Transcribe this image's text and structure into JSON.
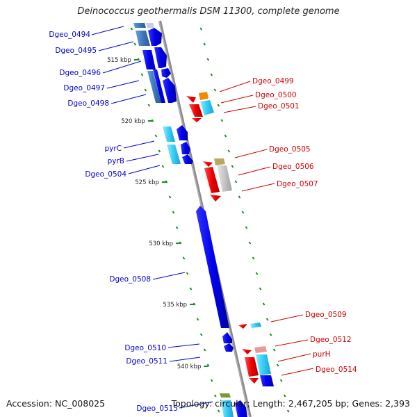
{
  "title": "Deinococcus geothermalis DSM 11300, complete genome",
  "accession": "Accession: NC_008025",
  "summary": "Topology: circular; Length: 2,467,205 bp; Genes: 2,393",
  "colors": {
    "backbone": "#8a8a8a",
    "tick": "#1a8a1a",
    "forward_label": "#0000cc",
    "reverse_label": "#cc0000"
  },
  "scale_labels": [
    "515 kbp",
    "520 kbp",
    "525 kbp",
    "530 kbp",
    "535 kbp",
    "540 kbp"
  ],
  "forward_labels": [
    "Dgeo_0494",
    "Dgeo_0495",
    "Dgeo_0496",
    "Dgeo_0497",
    "Dgeo_0498",
    "pyrC",
    "pyrB",
    "Dgeo_0504",
    "Dgeo_0508",
    "Dgeo_0510",
    "Dgeo_0511",
    "Dgeo_0515"
  ],
  "reverse_labels": [
    "Dgeo_0499",
    "Dgeo_0500",
    "Dgeo_0501",
    "Dgeo_0505",
    "Dgeo_0506",
    "Dgeo_0507",
    "Dgeo_0509",
    "Dgeo_0512",
    "purH",
    "Dgeo_0514"
  ]
}
